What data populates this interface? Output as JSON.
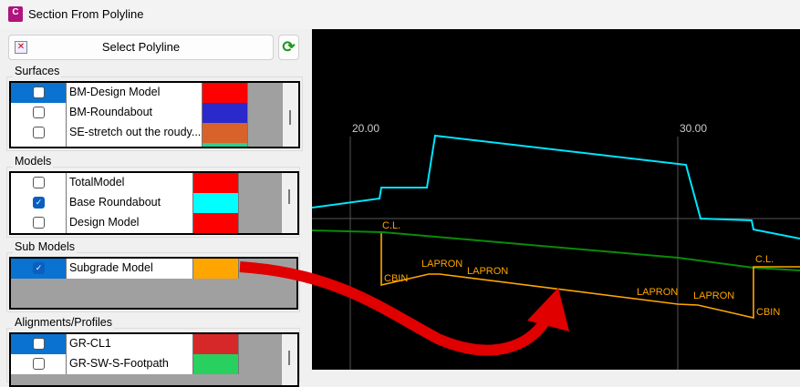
{
  "window": {
    "title": "Section From Polyline",
    "app_icon_letter": "C"
  },
  "toolbar": {
    "select_polyline": "Select Polyline"
  },
  "surfaces": {
    "label": "Surfaces",
    "items": [
      {
        "name": "BM-Design Model",
        "checked": false,
        "color": "#ff0000",
        "selected": true
      },
      {
        "name": "BM-Roundabout",
        "checked": false,
        "color": "#2a2acc"
      },
      {
        "name": "SE-stretch out the roudy...",
        "checked": false,
        "color": "#d8622a"
      },
      {
        "name": "",
        "checked": false,
        "color": "#2ad090"
      }
    ]
  },
  "models": {
    "label": "Models",
    "items": [
      {
        "name": "TotalModel",
        "checked": false,
        "color": "#ff0000"
      },
      {
        "name": "Base Roundabout",
        "checked": true,
        "color": "#00ffff"
      },
      {
        "name": "Design Model",
        "checked": false,
        "color": "#ff0000"
      }
    ]
  },
  "submodels": {
    "label": "Sub Models",
    "items": [
      {
        "name": "Subgrade Model",
        "checked": true,
        "color": "#ffa500",
        "selected": true
      }
    ]
  },
  "alignments": {
    "label": "Alignments/Profiles",
    "items": [
      {
        "name": "GR-CL1",
        "checked": false,
        "color": "#d62828",
        "selected": true
      },
      {
        "name": "GR-SW-S-Footpath",
        "checked": false,
        "color": "#28d060"
      }
    ]
  },
  "section_view": {
    "station_labels": [
      "20.00",
      "30.00"
    ],
    "annotations": {
      "cl": "C.L.",
      "cbin": "CBIN",
      "lapron": "LAPRON"
    },
    "colors": {
      "surface": "#00e5ff",
      "ground": "#0a8a0a",
      "subgrade": "#ffa500",
      "grid": "#555555",
      "arrow": "#e00000"
    }
  }
}
